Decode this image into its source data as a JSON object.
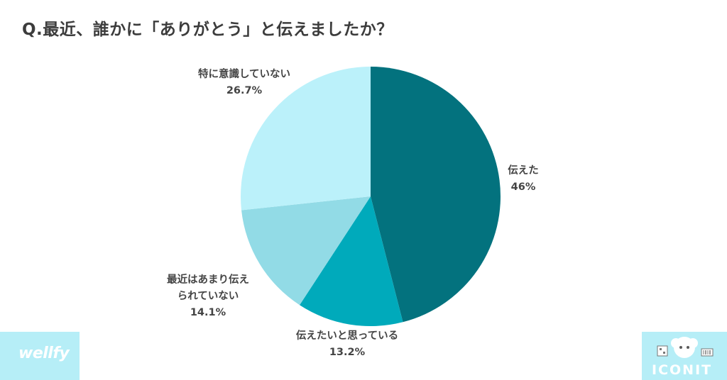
{
  "title": "Q.最近、誰かに「ありがとう」と伝えましたか？",
  "chart_data": {
    "type": "pie",
    "categories": [
      "伝えた",
      "伝えたいと思っている",
      "最近はあまり伝えられていない",
      "特に意識していない"
    ],
    "values": [
      46,
      13.2,
      14.1,
      26.7
    ],
    "value_labels": [
      "46%",
      "13.2%",
      "14.1%",
      "26.7%"
    ],
    "colors": [
      "#03727e",
      "#00aabb",
      "#92dbe6",
      "#bbf1fa"
    ],
    "start_angle": "12 o'clock",
    "direction": "clockwise",
    "legend": "none"
  },
  "labels": {
    "cat0": "伝えた",
    "cat1": "伝えたいと思っている",
    "cat2_line1": "最近はあまり伝え",
    "cat2_line2": "られていない",
    "cat3": "特に意識していない"
  },
  "logos": {
    "left": "wellfy",
    "right": "ICONIT"
  }
}
